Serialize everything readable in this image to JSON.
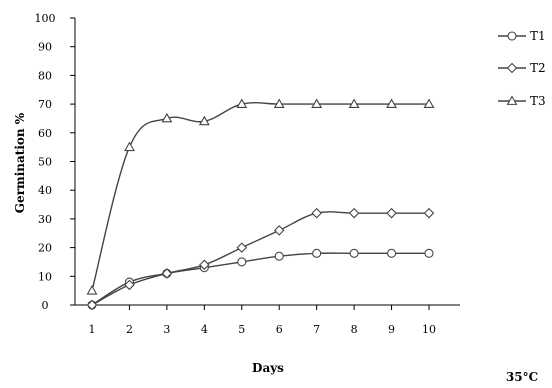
{
  "chart_data": {
    "type": "line",
    "title": "",
    "xlabel": "Days",
    "ylabel": "Germination %",
    "condition_label": "35°C",
    "x": [
      1,
      2,
      3,
      4,
      5,
      6,
      7,
      8,
      9,
      10
    ],
    "xlim": [
      1,
      10
    ],
    "ylim": [
      0,
      100
    ],
    "yticks": [
      0,
      10,
      20,
      30,
      40,
      50,
      60,
      70,
      80,
      90,
      100
    ],
    "grid": false,
    "legend_position": "right",
    "series": [
      {
        "name": "T1",
        "marker": "circle",
        "values": [
          0,
          8,
          11,
          13,
          15,
          17,
          18,
          18,
          18,
          18
        ]
      },
      {
        "name": "T2",
        "marker": "diamond",
        "values": [
          0,
          7,
          11,
          14,
          20,
          26,
          32,
          32,
          32,
          32
        ]
      },
      {
        "name": "T3",
        "marker": "triangle",
        "values": [
          5,
          55,
          65,
          64,
          70,
          70,
          70,
          70,
          70,
          70
        ]
      }
    ],
    "colors": {
      "line": "#444444",
      "marker_fill": "#ffffff",
      "axis": "#000000"
    }
  }
}
